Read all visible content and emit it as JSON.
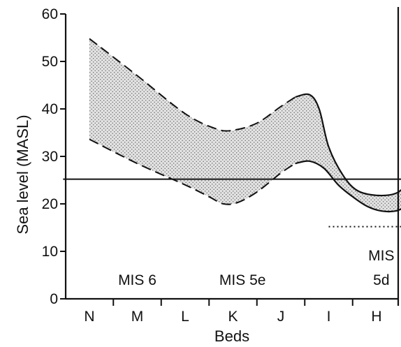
{
  "chart_data": {
    "type": "area",
    "ylabel": "Sea level (MASL)",
    "xlabel": "Beds",
    "categories": [
      "N",
      "M",
      "L",
      "K",
      "J",
      "I",
      "H"
    ],
    "ylim": [
      0,
      60
    ],
    "yticks": [
      0,
      10,
      20,
      30,
      40,
      50,
      60
    ],
    "stage_labels": [
      {
        "text": "MIS 6",
        "x": 1.0
      },
      {
        "text": "MIS 5e",
        "x": 3.2
      },
      {
        "text": "MIS",
        "x": 6.1
      },
      {
        "text": "5d",
        "x": 6.1
      }
    ],
    "envelope": {
      "upper": [
        {
          "x": 0.0,
          "y": 54.8
        },
        {
          "x": 1.0,
          "y": 47
        },
        {
          "x": 2.0,
          "y": 39
        },
        {
          "x": 2.65,
          "y": 35.8
        },
        {
          "x": 3.0,
          "y": 35.5
        },
        {
          "x": 3.5,
          "y": 37
        },
        {
          "x": 4.0,
          "y": 40.5
        },
        {
          "x": 4.3,
          "y": 42.5
        },
        {
          "x": 4.6,
          "y": 43
        },
        {
          "x": 4.8,
          "y": 40
        },
        {
          "x": 5.0,
          "y": 32
        },
        {
          "x": 5.3,
          "y": 26
        },
        {
          "x": 5.6,
          "y": 22.8
        },
        {
          "x": 6.0,
          "y": 21.8
        },
        {
          "x": 6.4,
          "y": 22.2
        },
        {
          "x": 6.65,
          "y": 24.2
        }
      ],
      "lower": [
        {
          "x": 0.0,
          "y": 33.6
        },
        {
          "x": 1.0,
          "y": 28.5
        },
        {
          "x": 2.0,
          "y": 24
        },
        {
          "x": 2.5,
          "y": 21.5
        },
        {
          "x": 2.8,
          "y": 20
        },
        {
          "x": 3.1,
          "y": 20.3
        },
        {
          "x": 3.5,
          "y": 22.5
        },
        {
          "x": 4.0,
          "y": 26.5
        },
        {
          "x": 4.3,
          "y": 28.5
        },
        {
          "x": 4.6,
          "y": 29
        },
        {
          "x": 4.9,
          "y": 27.5
        },
        {
          "x": 5.2,
          "y": 24
        },
        {
          "x": 5.5,
          "y": 21.5
        },
        {
          "x": 5.8,
          "y": 19.5
        },
        {
          "x": 6.1,
          "y": 18.5
        },
        {
          "x": 6.4,
          "y": 18.5
        },
        {
          "x": 6.65,
          "y": 19.6
        }
      ],
      "dashed_until_x": 4.3,
      "fill": "#d4d4d4"
    },
    "horizontal_reference": {
      "y": 25.2,
      "x_from": -0.55,
      "x_to": 6.65
    },
    "dotted_reference": {
      "y": 15.2,
      "x_from": 5.0,
      "x_to": 6.55
    },
    "grid": false
  }
}
